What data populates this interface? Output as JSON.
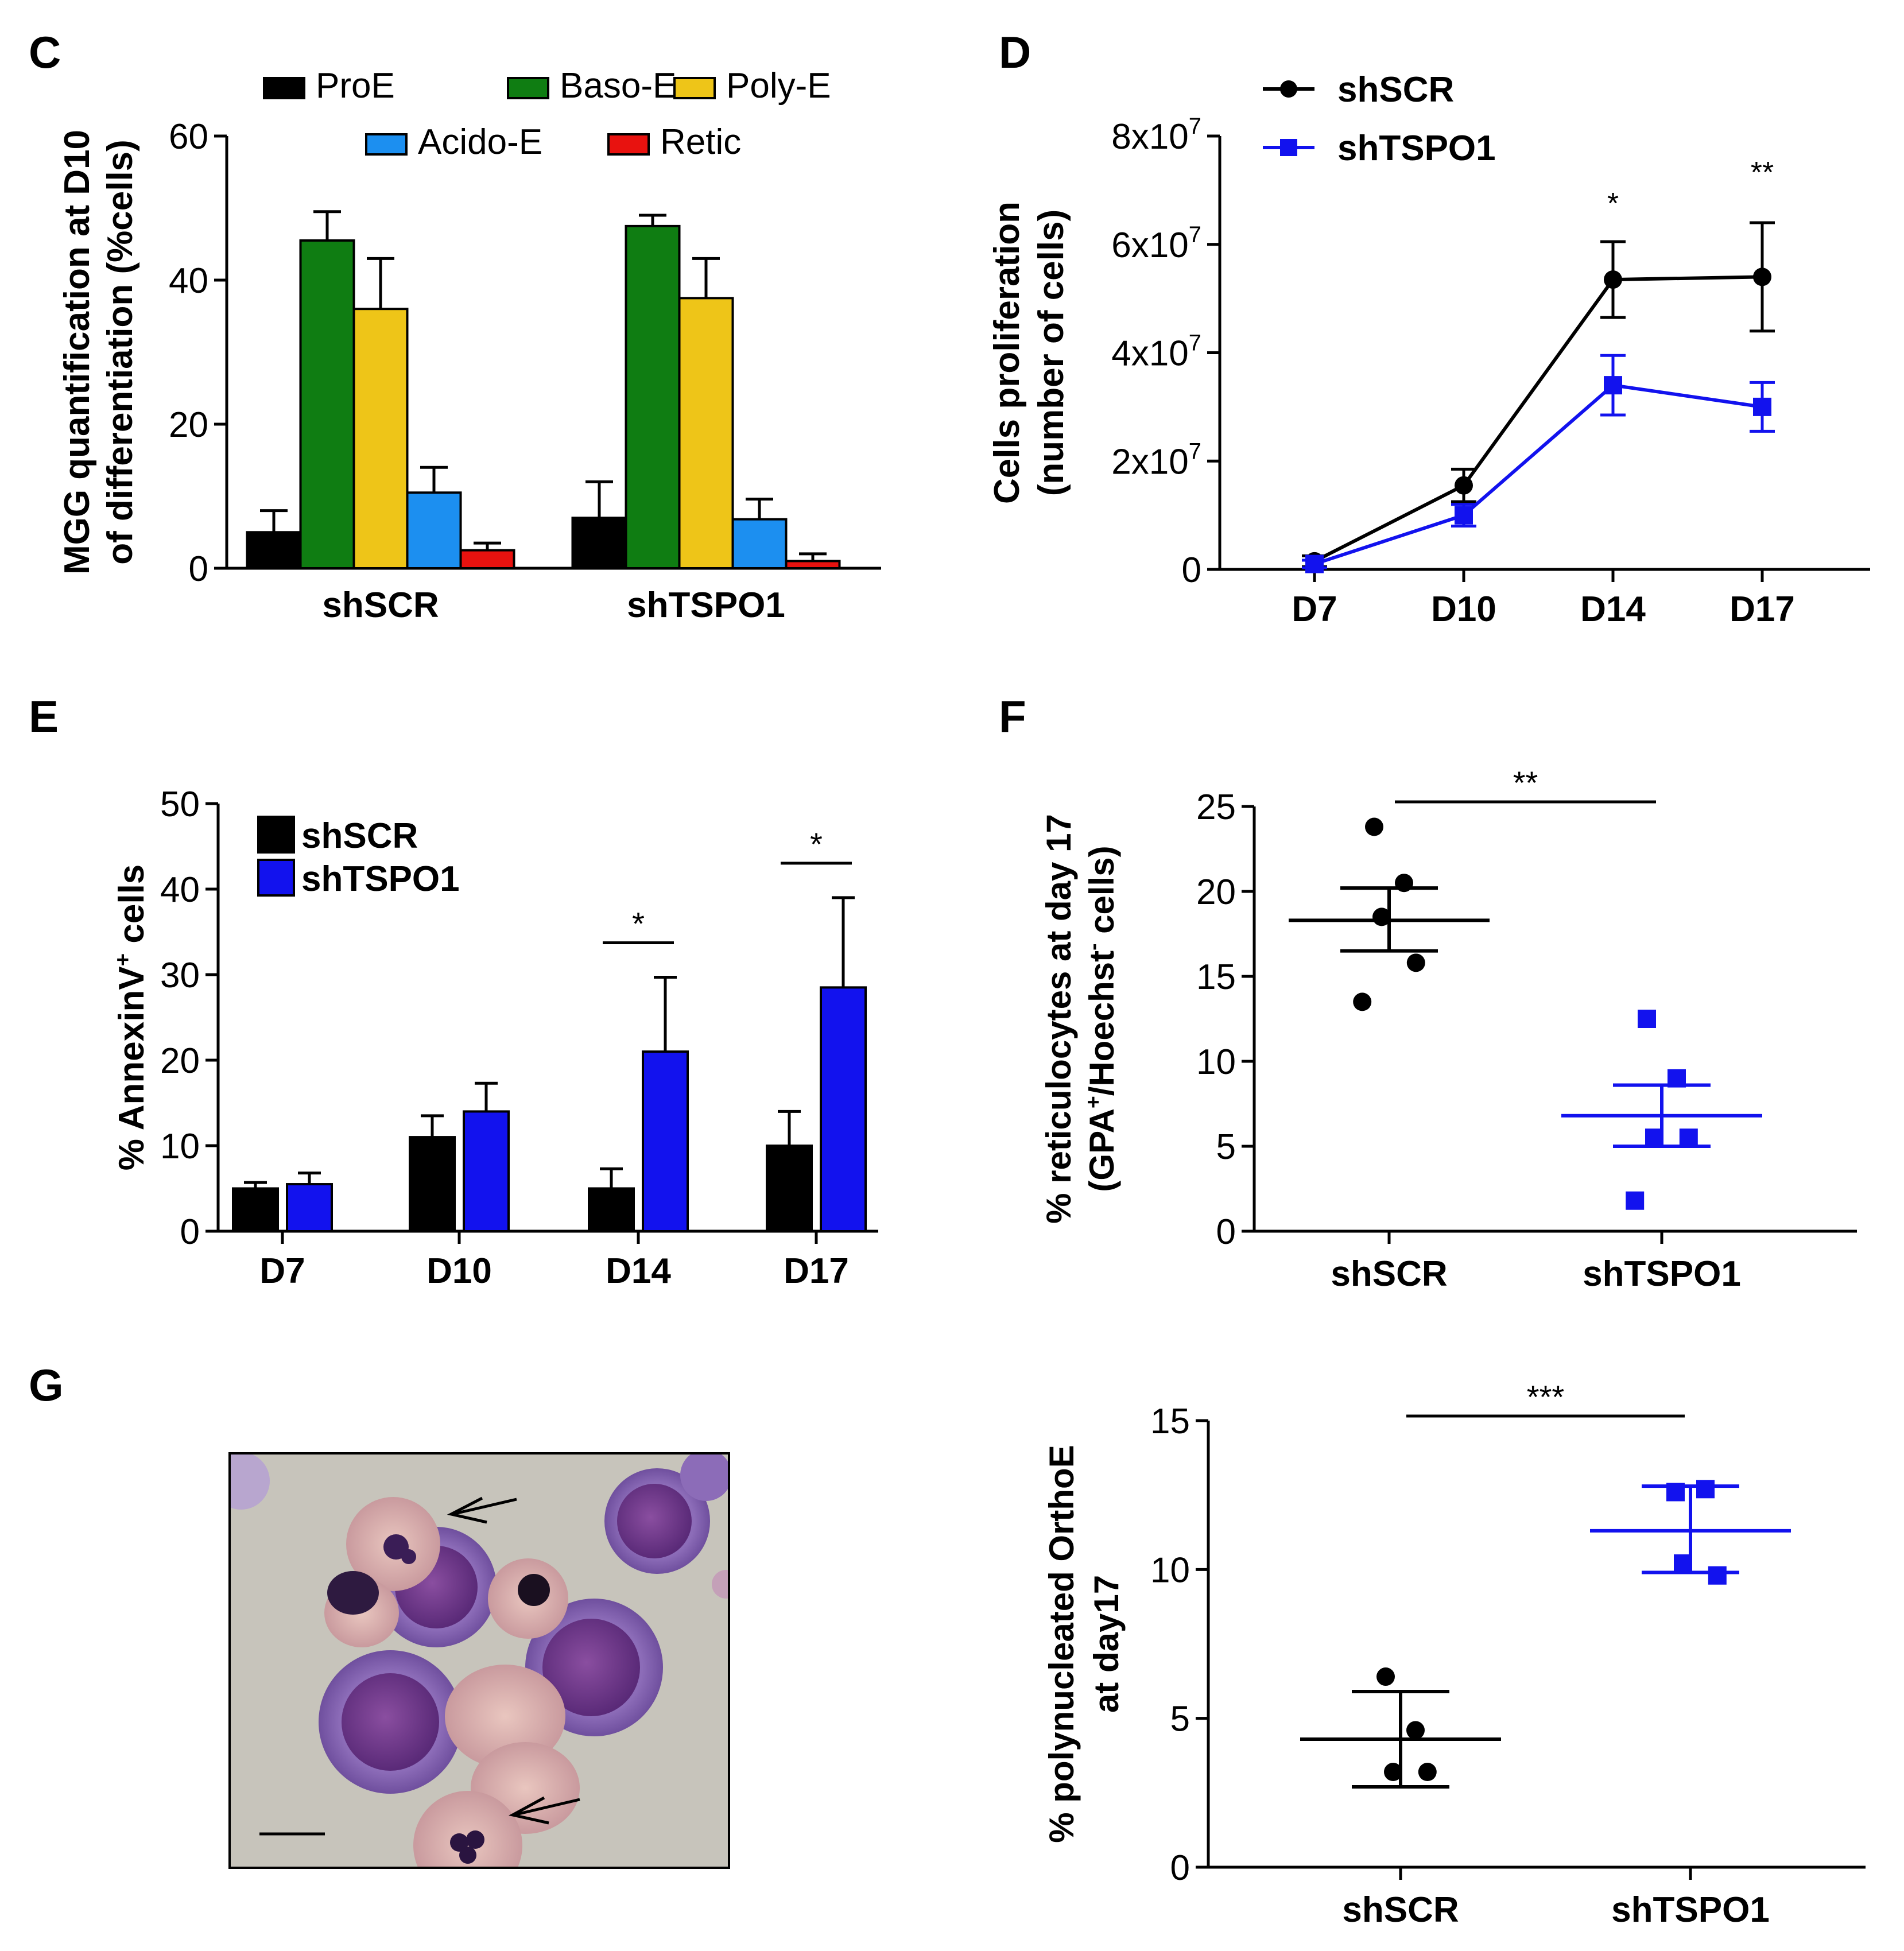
{
  "colors": {
    "black": "#000000",
    "green": "#0f7d12",
    "yellow": "#eec518",
    "lightblue": "#1c8ff0",
    "red": "#e8120f",
    "blue": "#1212ee"
  },
  "panels": {
    "C": "C",
    "D": "D",
    "E": "E",
    "F": "F",
    "G": "G"
  },
  "chart_data": [
    {
      "panel": "C",
      "type": "bar",
      "ylabel": [
        "MGG quantification at D10",
        "of differentiation (%cells)"
      ],
      "ylim": [
        0,
        60
      ],
      "yticks": [
        "0",
        "20",
        "40",
        "60"
      ],
      "categories": [
        "shSCR",
        "shTSPO1"
      ],
      "series": [
        {
          "name": "ProE",
          "color": "black",
          "values": [
            5,
            7
          ],
          "errors": [
            3,
            5
          ]
        },
        {
          "name": "Baso-E",
          "color": "green",
          "values": [
            45.5,
            47.5
          ],
          "errors": [
            4,
            1.5
          ]
        },
        {
          "name": "Poly-E",
          "color": "yellow",
          "values": [
            36,
            37.5
          ],
          "errors": [
            7,
            5.5
          ]
        },
        {
          "name": "Acido-E",
          "color": "lightblue",
          "values": [
            10.5,
            6.8
          ],
          "errors": [
            3.5,
            2.8
          ]
        },
        {
          "name": "Retic",
          "color": "red",
          "values": [
            2.5,
            1
          ],
          "errors": [
            1,
            1
          ]
        }
      ],
      "legend_position": "top"
    },
    {
      "panel": "D",
      "type": "line",
      "ylabel": [
        "Cells proliferation",
        "(number of cells)"
      ],
      "ylim": [
        0,
        80000000
      ],
      "yticks": [
        {
          "label": "0",
          "value": 0,
          "exp": ""
        },
        {
          "label": "2x10",
          "value": 20000000,
          "exp": "7"
        },
        {
          "label": "4x10",
          "value": 40000000,
          "exp": "7"
        },
        {
          "label": "6x10",
          "value": 60000000,
          "exp": "7"
        },
        {
          "label": "8x10",
          "value": 80000000,
          "exp": "7"
        }
      ],
      "categories": [
        "D7",
        "D10",
        "D14",
        "D17"
      ],
      "series": [
        {
          "name": "shSCR",
          "color": "black",
          "marker": "circle",
          "values": [
            1500000,
            15500000,
            53500000,
            54000000
          ],
          "errors": [
            1000000,
            3000000,
            7000000,
            10000000
          ]
        },
        {
          "name": "shTSPO1",
          "color": "blue",
          "marker": "square",
          "values": [
            1000000,
            10000000,
            34000000,
            30000000
          ],
          "errors": [
            700000,
            2000000,
            5500000,
            4500000
          ]
        }
      ],
      "annotations": [
        {
          "category": "D14",
          "text": "*"
        },
        {
          "category": "D17",
          "text": "**"
        }
      ],
      "legend_position": "top-left"
    },
    {
      "panel": "E",
      "type": "bar",
      "ylabel_parts": [
        "% AnnexinV",
        "+",
        " cells"
      ],
      "ylim": [
        0,
        50
      ],
      "yticks": [
        "0",
        "10",
        "20",
        "30",
        "40",
        "50"
      ],
      "categories": [
        "D7",
        "D10",
        "D14",
        "D17"
      ],
      "series": [
        {
          "name": "shSCR",
          "color": "black",
          "values": [
            5,
            11,
            5,
            10
          ],
          "errors": [
            0.7,
            2.5,
            2.3,
            4
          ]
        },
        {
          "name": "shTSPO1",
          "color": "blue",
          "values": [
            5.5,
            14,
            21,
            28.5
          ],
          "errors": [
            1.3,
            3.3,
            8.7,
            10.5
          ]
        }
      ],
      "annotations": [
        {
          "category": "D14",
          "text": "*"
        },
        {
          "category": "D17",
          "text": "*"
        }
      ],
      "legend_position": "top-left"
    },
    {
      "panel": "F",
      "type": "scatter",
      "ylabel_lines": [
        [
          "% reticulocytes at day 17"
        ],
        [
          "(GPA",
          "+",
          "/Hoechst",
          "-",
          " cells)"
        ]
      ],
      "ylim": [
        0,
        25
      ],
      "yticks": [
        "0",
        "5",
        "10",
        "15",
        "20",
        "25"
      ],
      "categories": [
        "shSCR",
        "shTSPO1"
      ],
      "groups": [
        {
          "name": "shSCR",
          "color": "black",
          "marker": "circle",
          "points": [
            23.8,
            20.5,
            18.5,
            15.8,
            13.5
          ],
          "mean": 18.3,
          "sem": [
            16.5,
            20.2
          ]
        },
        {
          "name": "shTSPO1",
          "color": "blue",
          "marker": "square",
          "points": [
            12.5,
            9,
            5.5,
            5.5,
            1.8
          ],
          "mean": 6.8,
          "sem": [
            5,
            8.6
          ]
        }
      ],
      "annotations": [
        {
          "text": "**"
        }
      ]
    },
    {
      "panel": "G",
      "type": "scatter",
      "ylabel_lines": [
        [
          "% polynucleated OrthoE"
        ],
        [
          "at day17"
        ]
      ],
      "ylim": [
        0,
        15
      ],
      "yticks": [
        "0",
        "5",
        "10",
        "15"
      ],
      "categories": [
        "shSCR",
        "shTSPO1"
      ],
      "groups": [
        {
          "name": "shSCR",
          "color": "black",
          "marker": "circle",
          "points": [
            6.4,
            4.6,
            3.2,
            3.2
          ],
          "mean": 4.3,
          "sem": [
            2.7,
            5.9
          ]
        },
        {
          "name": "shTSPO1",
          "color": "blue",
          "marker": "square",
          "points": [
            12.6,
            12.7,
            10.2,
            9.8
          ],
          "mean": 11.3,
          "sem": [
            9.9,
            12.8
          ]
        }
      ],
      "annotations": [
        {
          "text": "***"
        }
      ]
    }
  ]
}
